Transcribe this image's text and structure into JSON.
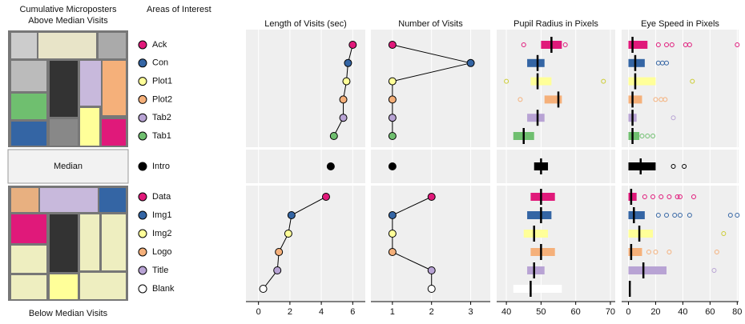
{
  "left": {
    "title": [
      "Cumulative Microposters",
      "Above Median Visits"
    ],
    "median_label": "Median",
    "footer": "Below Median Visits"
  },
  "aoi_header": "Areas of Interest",
  "areas": [
    {
      "name": "Ack",
      "color": "#e0197a"
    },
    {
      "name": "Con",
      "color": "#3465a4"
    },
    {
      "name": "Plot1",
      "color": "#ffff99"
    },
    {
      "name": "Plot2",
      "color": "#f5b07a"
    },
    {
      "name": "Tab2",
      "color": "#b8a3d4"
    },
    {
      "name": "Tab1",
      "color": "#6fbf6f"
    },
    {
      "name": "Intro",
      "color": "#000000"
    },
    {
      "name": "Data",
      "color": "#e0197a"
    },
    {
      "name": "Img1",
      "color": "#3465a4"
    },
    {
      "name": "Img2",
      "color": "#ffff99"
    },
    {
      "name": "Logo",
      "color": "#f5b07a"
    },
    {
      "name": "Title",
      "color": "#b8a3d4"
    },
    {
      "name": "Blank",
      "color": "#ffffff"
    }
  ],
  "chart_data": [
    {
      "type": "dot",
      "title": "Length of Visits (sec)",
      "xlim": [
        -0.8,
        6.8
      ],
      "xticks": [
        0,
        2,
        4,
        6
      ],
      "values": [
        6.0,
        5.7,
        5.6,
        5.4,
        5.4,
        4.8,
        4.6,
        4.3,
        2.1,
        1.9,
        1.3,
        1.2,
        0.3
      ]
    },
    {
      "type": "dot",
      "title": "Number of Visits",
      "xlim": [
        0.45,
        3.5
      ],
      "xticks": [
        1,
        2,
        3
      ],
      "values": [
        1,
        3,
        1,
        1,
        1,
        1,
        1,
        2,
        1,
        1,
        1,
        2,
        2
      ]
    },
    {
      "type": "box",
      "title": "Pupil Radius in Pixels",
      "xlim": [
        37.2,
        71.4
      ],
      "xticks": [
        40,
        50,
        60,
        70
      ],
      "q1": [
        50,
        46,
        47,
        51,
        46,
        42,
        48,
        47,
        46,
        45,
        47,
        46,
        42
      ],
      "median": [
        53,
        49,
        49,
        55,
        49,
        45,
        50,
        50,
        50,
        48,
        50,
        48,
        47
      ],
      "q3": [
        56,
        51,
        53,
        56,
        51,
        48,
        52,
        54,
        53,
        52,
        54,
        51,
        56
      ],
      "outliers": [
        [
          45,
          57
        ],
        [],
        [
          40,
          68
        ],
        [
          44
        ],
        [],
        [],
        [],
        [],
        [],
        [],
        [],
        [],
        []
      ]
    },
    {
      "type": "box",
      "title": "Eye Speed in Pixels",
      "xlim": [
        -5,
        81
      ],
      "xticks": [
        0,
        20,
        40,
        60,
        80
      ],
      "q1": [
        0,
        0,
        0,
        0,
        0,
        0,
        0,
        0,
        0,
        0,
        0,
        0,
        0
      ],
      "median": [
        3,
        5,
        5,
        3,
        3,
        3,
        9,
        2,
        4,
        8,
        2,
        11,
        1
      ],
      "q3": [
        14,
        12,
        20,
        10,
        6,
        8,
        20,
        6,
        12,
        18,
        10,
        28,
        2
      ],
      "outliers": [
        [
          22,
          28,
          32,
          42,
          45,
          80
        ],
        [
          22,
          25,
          28
        ],
        [
          47
        ],
        [
          20,
          24,
          27
        ],
        [
          33
        ],
        [
          10,
          14,
          18
        ],
        [
          33,
          41
        ],
        [
          12,
          18,
          24,
          30,
          36,
          38,
          48
        ],
        [
          22,
          28,
          34,
          38,
          45,
          75,
          80
        ],
        [
          70
        ],
        [
          15,
          20,
          30,
          65
        ],
        [
          63
        ],
        []
      ]
    }
  ]
}
